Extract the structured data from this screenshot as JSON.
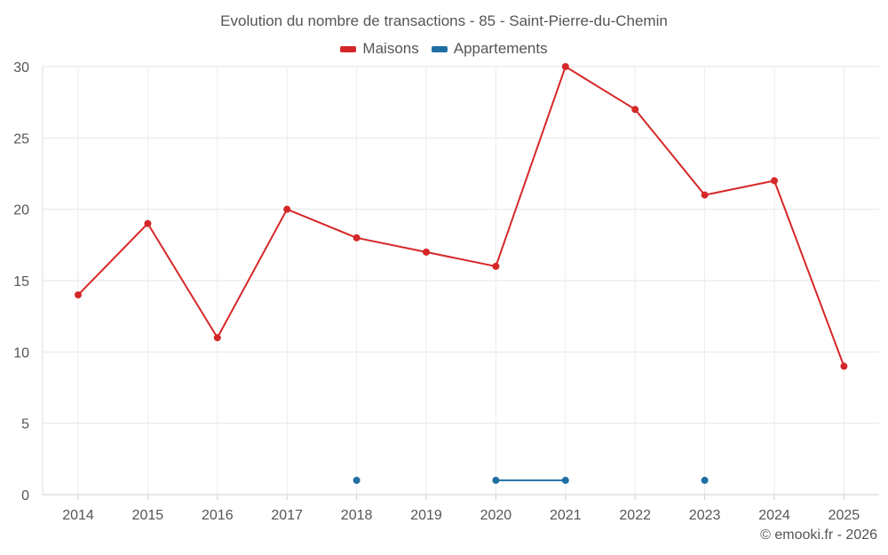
{
  "chart_data": {
    "type": "line",
    "title": "Evolution du nombre de transactions - 85 - Saint-Pierre-du-Chemin",
    "xlabel": "",
    "ylabel": "",
    "categories": [
      "2014",
      "2015",
      "2016",
      "2017",
      "2018",
      "2019",
      "2020",
      "2021",
      "2022",
      "2023",
      "2024",
      "2025"
    ],
    "ylim": [
      0,
      30
    ],
    "yticks": [
      "0",
      "5",
      "10",
      "15",
      "20",
      "25",
      "30"
    ],
    "grid": true,
    "legend_position": "top-center",
    "series": [
      {
        "name": "Maisons",
        "color": "#d62728",
        "values": [
          14,
          19,
          11,
          20,
          18,
          17,
          16,
          30,
          27,
          21,
          22,
          9
        ]
      },
      {
        "name": "Appartements",
        "color": "#1f6fa3",
        "values": [
          null,
          null,
          null,
          null,
          1,
          null,
          1,
          1,
          null,
          1,
          null,
          null
        ]
      }
    ]
  },
  "credit": "© emooki.fr - 2026"
}
